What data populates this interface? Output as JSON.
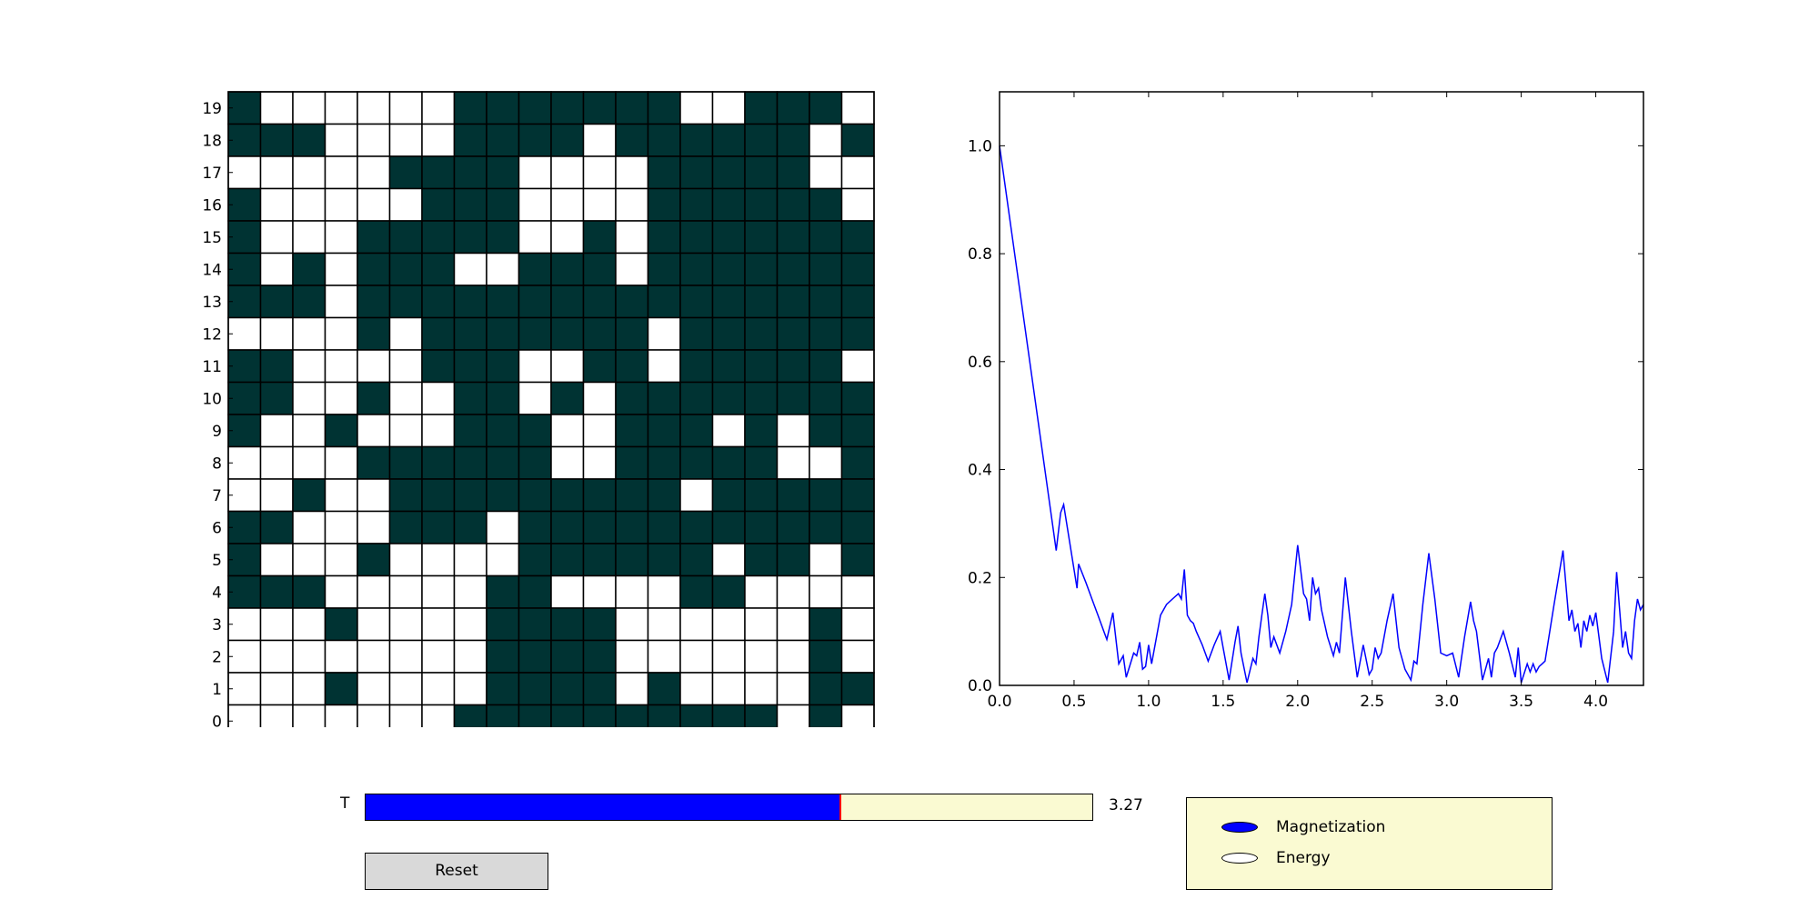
{
  "chart_data": [
    {
      "type": "heatmap",
      "title": "",
      "xlabel": "",
      "ylabel": "",
      "x_ticks": [
        "0",
        "1",
        "2",
        "3",
        "4",
        "5",
        "6",
        "7",
        "8",
        "9",
        "10",
        "11",
        "12",
        "13",
        "14",
        "15",
        "16",
        "17",
        "18",
        "19"
      ],
      "y_ticks": [
        "0",
        "1",
        "2",
        "3",
        "4",
        "5",
        "6",
        "7",
        "8",
        "9",
        "10",
        "11",
        "12",
        "13",
        "14",
        "15",
        "16",
        "17",
        "18",
        "19"
      ],
      "colors": {
        "spin_up": "#003333",
        "spin_down": "#ffffff"
      },
      "rows_top_to_bottom": [
        "10000001111111001110",
        "11100001111011111101",
        "00000111100001111100",
        "10000011100001111110",
        "10001111100101111111",
        "10101110011101111111",
        "11101111111111111111",
        "00001011111110111111",
        "11000011100110111110",
        "11001001101011111111",
        "10010001110011101011",
        "00001111110011111001",
        "00100111111111011111",
        "11000111011111111111",
        "10001000011111101101",
        "11100000110000110000",
        "00010000111100000010",
        "00000000111100000010",
        "00010000111101000011",
        "00000001111111111010"
      ]
    },
    {
      "type": "line",
      "title": "",
      "xlabel": "",
      "ylabel": "",
      "xlim": [
        0.0,
        4.32
      ],
      "ylim": [
        0.0,
        1.1
      ],
      "x_ticks": [
        "0.0",
        "0.5",
        "1.0",
        "1.5",
        "2.0",
        "2.5",
        "3.0",
        "3.5",
        "4.0"
      ],
      "y_ticks": [
        "0.0",
        "0.2",
        "0.4",
        "0.6",
        "0.8",
        "1.0"
      ],
      "grid": false,
      "color": "#0000ff",
      "series": [
        {
          "x": [
            0.0,
            0.38,
            0.41,
            0.43,
            0.52,
            0.53,
            0.58,
            0.62,
            0.66,
            0.7,
            0.72,
            0.76,
            0.8,
            0.83,
            0.85,
            0.9,
            0.92,
            0.94,
            0.96,
            0.98,
            1.0,
            1.02,
            1.08,
            1.12,
            1.16,
            1.2,
            1.22,
            1.24,
            1.26,
            1.28,
            1.3,
            1.32,
            1.36,
            1.4,
            1.44,
            1.48,
            1.5,
            1.54,
            1.58,
            1.6,
            1.62,
            1.66,
            1.7,
            1.72,
            1.74,
            1.76,
            1.78,
            1.8,
            1.82,
            1.84,
            1.88,
            1.92,
            1.96,
            2.0,
            2.04,
            2.06,
            2.08,
            2.1,
            2.12,
            2.14,
            2.16,
            2.2,
            2.24,
            2.26,
            2.28,
            2.32,
            2.36,
            2.4,
            2.44,
            2.48,
            2.5,
            2.52,
            2.54,
            2.56,
            2.6,
            2.64,
            2.68,
            2.72,
            2.76,
            2.78,
            2.8,
            2.84,
            2.88,
            2.92,
            2.96,
            3.0,
            3.04,
            3.08,
            3.12,
            3.16,
            3.18,
            3.2,
            3.24,
            3.28,
            3.3,
            3.32,
            3.34,
            3.38,
            3.42,
            3.46,
            3.48,
            3.5,
            3.54,
            3.56,
            3.58,
            3.6,
            3.62,
            3.64,
            3.66,
            3.72,
            3.78,
            3.82,
            3.84,
            3.86,
            3.88,
            3.9,
            3.92,
            3.94,
            3.96,
            3.98,
            4.0,
            4.04,
            4.08,
            4.12,
            4.14,
            4.16,
            4.18,
            4.2,
            4.22,
            4.24,
            4.26,
            4.28,
            4.3,
            4.32
          ],
          "y": [
            1.0,
            0.25,
            0.32,
            0.335,
            0.18,
            0.225,
            0.19,
            0.16,
            0.13,
            0.1,
            0.085,
            0.135,
            0.04,
            0.055,
            0.015,
            0.06,
            0.055,
            0.08,
            0.03,
            0.035,
            0.075,
            0.04,
            0.13,
            0.15,
            0.16,
            0.17,
            0.16,
            0.215,
            0.13,
            0.12,
            0.115,
            0.1,
            0.075,
            0.045,
            0.075,
            0.1,
            0.07,
            0.01,
            0.08,
            0.11,
            0.06,
            0.005,
            0.05,
            0.04,
            0.09,
            0.13,
            0.17,
            0.13,
            0.07,
            0.09,
            0.06,
            0.1,
            0.15,
            0.26,
            0.17,
            0.16,
            0.12,
            0.2,
            0.17,
            0.18,
            0.14,
            0.09,
            0.055,
            0.08,
            0.06,
            0.2,
            0.1,
            0.015,
            0.075,
            0.02,
            0.03,
            0.07,
            0.05,
            0.06,
            0.12,
            0.17,
            0.07,
            0.03,
            0.01,
            0.045,
            0.04,
            0.15,
            0.245,
            0.16,
            0.06,
            0.055,
            0.06,
            0.015,
            0.09,
            0.155,
            0.12,
            0.1,
            0.01,
            0.05,
            0.015,
            0.06,
            0.07,
            0.1,
            0.06,
            0.015,
            0.07,
            0.005,
            0.04,
            0.025,
            0.04,
            0.025,
            0.035,
            0.04,
            0.045,
            0.15,
            0.25,
            0.12,
            0.14,
            0.1,
            0.115,
            0.07,
            0.12,
            0.1,
            0.13,
            0.11,
            0.135,
            0.05,
            0.005,
            0.1,
            0.21,
            0.14,
            0.07,
            0.1,
            0.06,
            0.05,
            0.12,
            0.16,
            0.14,
            0.15
          ]
        }
      ]
    }
  ],
  "slider": {
    "label": "T",
    "value_text": "3.27",
    "fraction": 0.653,
    "fill_color": "#0000ff",
    "track_color": "#fafad2",
    "handle_color": "#ff0000"
  },
  "reset_button": {
    "label": "Reset"
  },
  "radio": {
    "options": [
      "Magnetization",
      "Energy"
    ],
    "selected_index": 0,
    "panel_color": "#fafad2",
    "active_color": "#0000ff"
  }
}
